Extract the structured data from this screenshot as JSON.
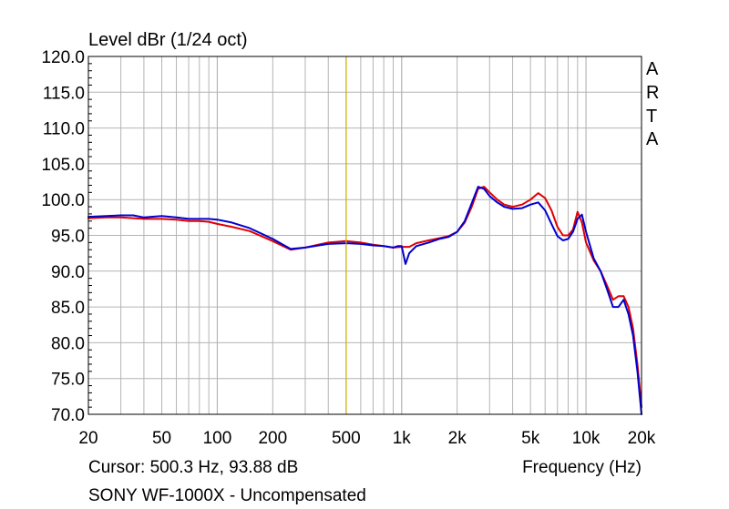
{
  "chart_data": {
    "type": "line",
    "title": "Level dBr (1/24 oct)",
    "xlabel": "Frequency (Hz)",
    "ylabel": "Level dBr (1/24 oct)",
    "x_scale": "log",
    "xlim": [
      20,
      20000
    ],
    "ylim": [
      70,
      120
    ],
    "grid": true,
    "x_tick_values": [
      20,
      50,
      100,
      200,
      500,
      1000,
      2000,
      5000,
      10000,
      20000
    ],
    "x_tick_labels": [
      "20",
      "50",
      "100",
      "200",
      "500",
      "1k",
      "2k",
      "5k",
      "10k",
      "20k"
    ],
    "y_tick_values": [
      70,
      75,
      80,
      85,
      90,
      95,
      100,
      105,
      110,
      115,
      120
    ],
    "y_tick_labels": [
      "70.0",
      "75.0",
      "80.0",
      "85.0",
      "90.0",
      "95.0",
      "100.0",
      "105.0",
      "110.0",
      "115.0",
      "120.0"
    ],
    "cursor": {
      "x": 500.3,
      "y": 93.88,
      "color": "#c8b400"
    },
    "series": [
      {
        "color": "#e00000",
        "x": [
          20,
          25,
          30,
          35,
          40,
          50,
          60,
          70,
          80,
          90,
          100,
          120,
          150,
          200,
          250,
          300,
          400,
          500,
          600,
          700,
          800,
          900,
          1000,
          1100,
          1200,
          1400,
          1600,
          1800,
          2000,
          2200,
          2400,
          2600,
          2800,
          3000,
          3300,
          3600,
          4000,
          4500,
          5000,
          5500,
          6000,
          6500,
          7000,
          7500,
          8000,
          8500,
          9000,
          9500,
          10000,
          11000,
          12000,
          13000,
          14000,
          15000,
          16000,
          17000,
          18000,
          19000,
          20000
        ],
        "y": [
          97.4,
          97.5,
          97.5,
          97.4,
          97.3,
          97.3,
          97.2,
          97.0,
          97.0,
          96.9,
          96.6,
          96.2,
          95.6,
          94.2,
          93.0,
          93.3,
          94.0,
          94.2,
          94.0,
          93.7,
          93.5,
          93.3,
          93.4,
          93.4,
          93.9,
          94.3,
          94.6,
          94.9,
          95.5,
          96.8,
          99.0,
          101.5,
          101.8,
          101.0,
          100.0,
          99.3,
          99.0,
          99.3,
          100.0,
          100.9,
          100.2,
          98.5,
          96.2,
          95.0,
          95.0,
          95.8,
          98.3,
          96.8,
          94.0,
          91.5,
          90.0,
          88.0,
          86.0,
          86.5,
          86.5,
          85.0,
          82.0,
          77.0,
          71.0
        ]
      },
      {
        "color": "#0000d0",
        "x": [
          20,
          25,
          30,
          35,
          40,
          50,
          60,
          70,
          80,
          90,
          100,
          120,
          150,
          200,
          250,
          300,
          400,
          500,
          600,
          700,
          800,
          900,
          950,
          1000,
          1050,
          1100,
          1200,
          1400,
          1600,
          1800,
          2000,
          2200,
          2400,
          2600,
          2800,
          3000,
          3300,
          3600,
          4000,
          4500,
          5000,
          5500,
          6000,
          6500,
          7000,
          7500,
          8000,
          8500,
          9000,
          9500,
          10000,
          11000,
          12000,
          13000,
          14000,
          15000,
          16000,
          17000,
          18000,
          19000,
          20000
        ],
        "y": [
          97.6,
          97.7,
          97.8,
          97.8,
          97.5,
          97.7,
          97.5,
          97.3,
          97.3,
          97.3,
          97.2,
          96.8,
          96.0,
          94.5,
          93.1,
          93.3,
          93.8,
          93.9,
          93.8,
          93.6,
          93.5,
          93.3,
          93.5,
          93.5,
          91.0,
          92.5,
          93.5,
          94.0,
          94.5,
          94.8,
          95.5,
          97.0,
          99.5,
          101.8,
          101.5,
          100.5,
          99.6,
          99.0,
          98.7,
          98.8,
          99.3,
          99.6,
          98.5,
          96.6,
          94.9,
          94.3,
          94.5,
          95.5,
          97.3,
          97.9,
          95.5,
          91.8,
          90.0,
          87.5,
          85.0,
          85.0,
          86.0,
          84.0,
          81.0,
          76.0,
          70.0
        ]
      }
    ]
  },
  "logo_letters": [
    "A",
    "R",
    "T",
    "A"
  ],
  "cursor_readout": "Cursor: 500.3 Hz, 93.88 dB",
  "x_axis_caption": "Frequency (Hz)",
  "caption": "SONY WF-1000X - Uncompensated",
  "colors": {
    "grid": "#b4b4b4",
    "frame": "#000000",
    "background": "#ffffff"
  }
}
